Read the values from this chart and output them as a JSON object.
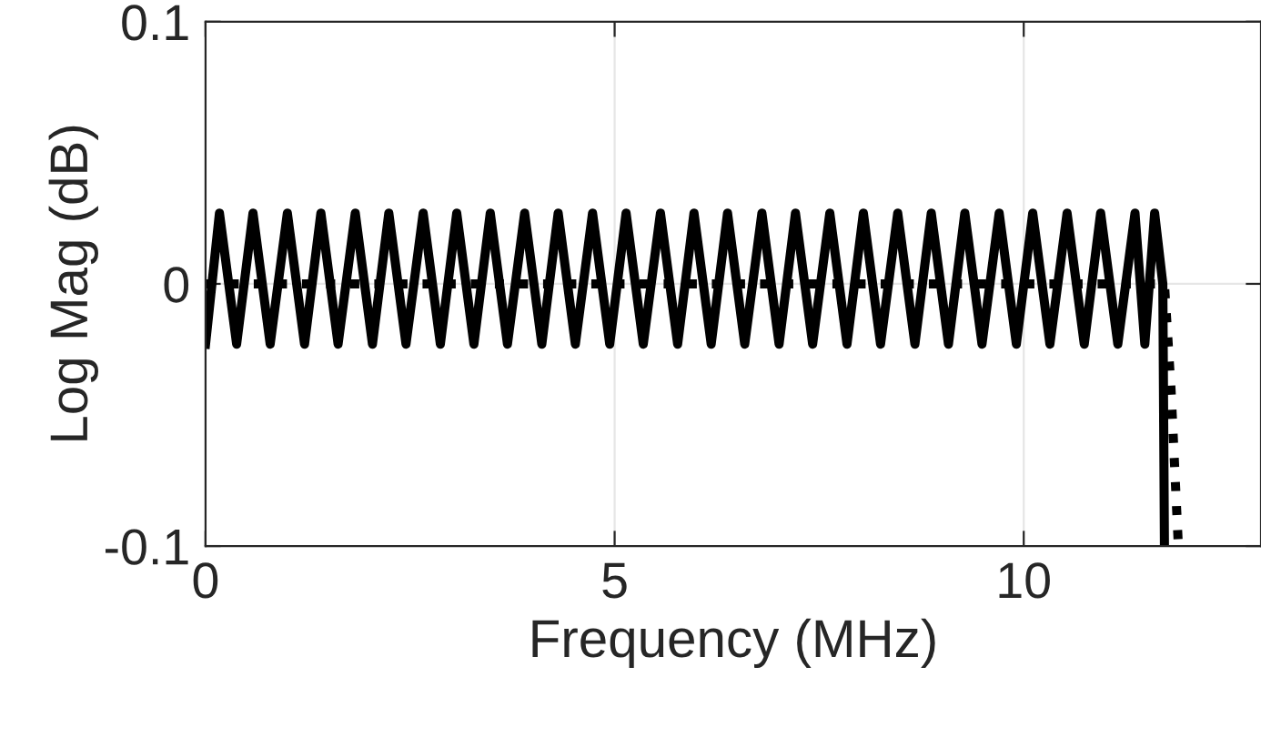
{
  "chart_data": {
    "type": "line",
    "xlabel": "Frequency (MHz)",
    "ylabel": "Log Mag (dB)",
    "xlim": [
      0,
      12.9
    ],
    "ylim": [
      -0.1,
      0.1
    ],
    "xticks": [
      0,
      5,
      10
    ],
    "yticks": [
      -0.1,
      0,
      0.1
    ],
    "grid": true,
    "series": [
      {
        "color": "#000000",
        "line_style": "solid",
        "x": [
          0,
          0.17,
          0.38,
          0.58,
          0.79,
          1.0,
          1.21,
          1.41,
          1.62,
          1.83,
          2.04,
          2.24,
          2.45,
          2.66,
          2.87,
          3.07,
          3.28,
          3.48,
          3.69,
          3.9,
          4.11,
          4.31,
          4.52,
          4.73,
          4.94,
          5.14,
          5.35,
          5.56,
          5.77,
          5.97,
          6.18,
          6.38,
          6.59,
          6.8,
          7.01,
          7.21,
          7.42,
          7.63,
          7.84,
          8.04,
          8.25,
          8.46,
          8.67,
          8.87,
          9.08,
          9.28,
          9.49,
          9.7,
          9.91,
          10.11,
          10.32,
          10.53,
          10.74,
          10.94,
          11.15,
          11.36,
          11.48,
          11.6,
          11.7,
          11.72
        ],
        "values": [
          -0.023,
          0.027,
          -0.023,
          0.027,
          -0.023,
          0.027,
          -0.023,
          0.027,
          -0.023,
          0.027,
          -0.023,
          0.027,
          -0.023,
          0.027,
          -0.023,
          0.027,
          -0.023,
          0.027,
          -0.023,
          0.027,
          -0.023,
          0.027,
          -0.023,
          0.027,
          -0.023,
          0.027,
          -0.023,
          0.027,
          -0.023,
          0.027,
          -0.023,
          0.027,
          -0.023,
          0.027,
          -0.023,
          0.027,
          -0.023,
          0.027,
          -0.023,
          0.027,
          -0.023,
          0.027,
          -0.023,
          0.027,
          -0.023,
          0.027,
          -0.023,
          0.027,
          -0.023,
          0.027,
          -0.023,
          0.027,
          -0.023,
          0.027,
          -0.023,
          0.027,
          -0.023,
          0.027,
          0,
          -0.1
        ]
      },
      {
        "color": "#000000",
        "line_style": "dotted",
        "x": [
          0,
          11.72,
          11.8,
          11.89
        ],
        "values": [
          0,
          0,
          -0.04,
          -0.1
        ]
      }
    ]
  }
}
